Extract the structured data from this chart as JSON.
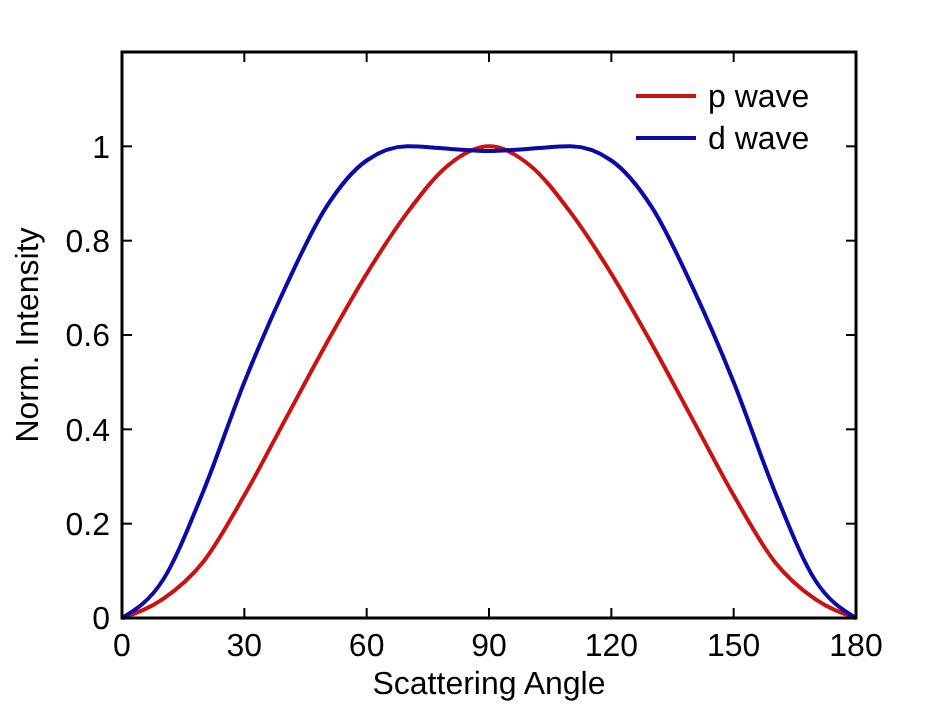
{
  "chart_data": {
    "type": "line",
    "xlabel": "Scattering Angle",
    "ylabel": "Norm. Intensity",
    "x": [
      0,
      10,
      20,
      30,
      40,
      50,
      60,
      70,
      80,
      90,
      100,
      110,
      120,
      130,
      140,
      150,
      160,
      170,
      180
    ],
    "series": [
      {
        "name": "p wave",
        "color": "#cc1111",
        "values": [
          0,
          0.04,
          0.12,
          0.26,
          0.42,
          0.58,
          0.73,
          0.86,
          0.96,
          1.0,
          0.96,
          0.86,
          0.73,
          0.58,
          0.42,
          0.26,
          0.12,
          0.04,
          0
        ]
      },
      {
        "name": "d wave",
        "color": "#0a0aa8",
        "values": [
          0,
          0.08,
          0.27,
          0.5,
          0.7,
          0.87,
          0.97,
          1.0,
          0.995,
          0.99,
          0.995,
          1.0,
          0.97,
          0.87,
          0.7,
          0.5,
          0.27,
          0.08,
          0
        ]
      }
    ],
    "xlim": [
      0,
      180
    ],
    "xticks": [
      0,
      30,
      60,
      90,
      120,
      150,
      180
    ],
    "ylim": [
      0,
      1.2
    ],
    "yticks": [
      0,
      0.2,
      0.4,
      0.6,
      0.8,
      1
    ],
    "grid": false,
    "legend": "top right",
    "marker": "none",
    "line_style": "solid"
  }
}
